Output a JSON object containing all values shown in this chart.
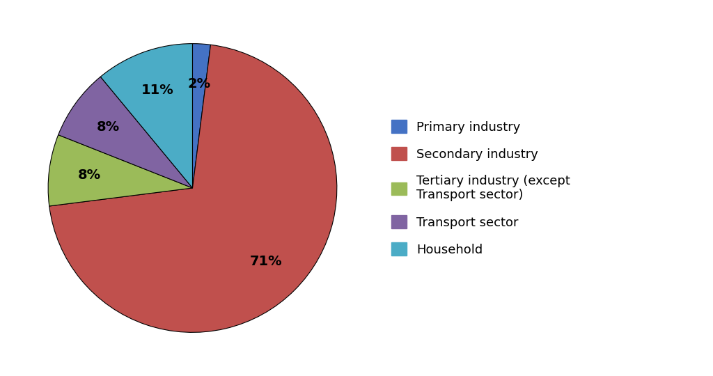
{
  "labels": [
    "Primary industry",
    "Secondary industry",
    "Tertiary industry (except\nTransport sector)",
    "Transport sector",
    "Household"
  ],
  "values": [
    2,
    71,
    8,
    8,
    11
  ],
  "colors": [
    "#4472C4",
    "#C0504D",
    "#9BBB59",
    "#8064A2",
    "#4BACC6"
  ],
  "pct_labels": [
    "2%",
    "71%",
    "8%",
    "8%",
    "11%"
  ],
  "legend_labels": [
    "Primary industry",
    "Secondary industry",
    "Tertiary industry (except\nTransport sector)",
    "Transport sector",
    "Household"
  ],
  "background_color": "#FFFFFF",
  "label_fontsize": 14,
  "legend_fontsize": 13,
  "pct_fontweight": "bold"
}
